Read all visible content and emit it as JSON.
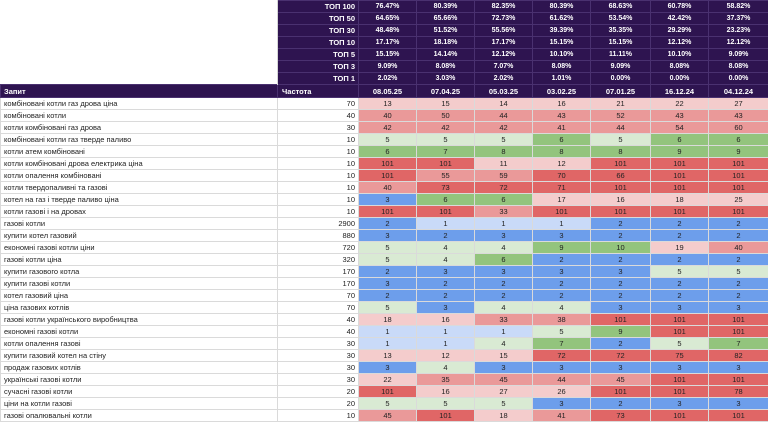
{
  "summary": [
    {
      "label": "ТОП 100",
      "values": [
        "76.47%",
        "80.39%",
        "82.35%",
        "80.39%",
        "68.63%",
        "60.78%",
        "58.82%"
      ]
    },
    {
      "label": "ТОП 50",
      "values": [
        "64.65%",
        "65.66%",
        "72.73%",
        "61.62%",
        "53.54%",
        "42.42%",
        "37.37%"
      ]
    },
    {
      "label": "ТОП 30",
      "values": [
        "48.48%",
        "51.52%",
        "55.56%",
        "39.39%",
        "35.35%",
        "29.29%",
        "23.23%"
      ]
    },
    {
      "label": "ТОП 10",
      "values": [
        "17.17%",
        "18.18%",
        "17.17%",
        "15.15%",
        "15.15%",
        "12.12%",
        "12.12%"
      ]
    },
    {
      "label": "ТОП 5",
      "values": [
        "15.15%",
        "14.14%",
        "12.12%",
        "10.10%",
        "11.11%",
        "10.10%",
        "9.09%"
      ]
    },
    {
      "label": "ТОП 3",
      "values": [
        "9.09%",
        "8.08%",
        "7.07%",
        "8.08%",
        "9.09%",
        "8.08%",
        "8.08%"
      ]
    },
    {
      "label": "ТОП 1",
      "values": [
        "2.02%",
        "3.03%",
        "2.02%",
        "1.01%",
        "0.00%",
        "0.00%",
        "0.00%"
      ]
    }
  ],
  "header": {
    "query": "Запит",
    "freq": "Частота",
    "dates": [
      "08.05.25",
      "07.04.25",
      "05.03.25",
      "03.02.25",
      "07.01.25",
      "16.12.24",
      "04.12.24"
    ]
  },
  "rows": [
    {
      "q": "комбіновані котли газ дрова ціна",
      "f": "70",
      "v": [
        "13",
        "15",
        "14",
        "16",
        "21",
        "22",
        "27"
      ]
    },
    {
      "q": "комбіновані котли",
      "f": "40",
      "v": [
        "40",
        "50",
        "44",
        "43",
        "52",
        "43",
        "43"
      ]
    },
    {
      "q": "котли комбіновані газ дрова",
      "f": "30",
      "v": [
        "42",
        "42",
        "42",
        "41",
        "44",
        "54",
        "60"
      ]
    },
    {
      "q": "комбіновані котли газ тверде паливо",
      "f": "10",
      "v": [
        "5",
        "5",
        "5",
        "6",
        "5",
        "6",
        "6"
      ]
    },
    {
      "q": "котли атем комбіновані",
      "f": "10",
      "v": [
        "6",
        "7",
        "8",
        "8",
        "8",
        "9",
        "9"
      ]
    },
    {
      "q": "котли комбіновані дрова електрика ціна",
      "f": "10",
      "v": [
        "101",
        "101",
        "11",
        "12",
        "101",
        "101",
        "101"
      ]
    },
    {
      "q": "котли опалення комбіновані",
      "f": "10",
      "v": [
        "101",
        "55",
        "59",
        "70",
        "66",
        "101",
        "101"
      ]
    },
    {
      "q": "котли твердопаливні та газові",
      "f": "10",
      "v": [
        "40",
        "73",
        "72",
        "71",
        "101",
        "101",
        "101"
      ]
    },
    {
      "q": "котел на газ і тверде паливо ціна",
      "f": "10",
      "v": [
        "3",
        "6",
        "6",
        "17",
        "16",
        "18",
        "25"
      ]
    },
    {
      "q": "котли газові і на дровах",
      "f": "10",
      "v": [
        "101",
        "101",
        "33",
        "101",
        "101",
        "101",
        "101"
      ]
    },
    {
      "q": "газові котли",
      "f": "2900",
      "v": [
        "2",
        "1",
        "1",
        "1",
        "2",
        "2",
        "2"
      ]
    },
    {
      "q": "купити котел газовий",
      "f": "880",
      "v": [
        "3",
        "2",
        "3",
        "3",
        "2",
        "2",
        "2"
      ]
    },
    {
      "q": "економні газові котли ціни",
      "f": "720",
      "v": [
        "5",
        "4",
        "4",
        "9",
        "10",
        "19",
        "40"
      ]
    },
    {
      "q": "газові котли ціна",
      "f": "320",
      "v": [
        "5",
        "4",
        "6",
        "2",
        "2",
        "2",
        "2"
      ]
    },
    {
      "q": "купити газового котла",
      "f": "170",
      "v": [
        "2",
        "3",
        "3",
        "3",
        "3",
        "5",
        "5"
      ]
    },
    {
      "q": "купити газові котли",
      "f": "170",
      "v": [
        "3",
        "2",
        "2",
        "2",
        "2",
        "2",
        "2"
      ]
    },
    {
      "q": "котел газовий ціна",
      "f": "70",
      "v": [
        "2",
        "2",
        "2",
        "2",
        "2",
        "2",
        "2"
      ]
    },
    {
      "q": "ціна газових котлів",
      "f": "70",
      "v": [
        "5",
        "3",
        "4",
        "4",
        "3",
        "3",
        "3"
      ]
    },
    {
      "q": "газові котли українського виробництва",
      "f": "40",
      "v": [
        "18",
        "16",
        "33",
        "38",
        "101",
        "101",
        "101"
      ]
    },
    {
      "q": "економні газові котли",
      "f": "40",
      "v": [
        "1",
        "1",
        "1",
        "5",
        "9",
        "101",
        "101"
      ]
    },
    {
      "q": "котли опалення газові",
      "f": "30",
      "v": [
        "1",
        "1",
        "4",
        "7",
        "2",
        "5",
        "7"
      ]
    },
    {
      "q": "купити газовий котел на стіну",
      "f": "30",
      "v": [
        "13",
        "12",
        "15",
        "72",
        "72",
        "75",
        "82"
      ]
    },
    {
      "q": "продаж газових котлів",
      "f": "30",
      "v": [
        "3",
        "4",
        "3",
        "3",
        "3",
        "3",
        "3"
      ]
    },
    {
      "q": "українські газові котли",
      "f": "30",
      "v": [
        "22",
        "35",
        "45",
        "44",
        "45",
        "101",
        "101"
      ]
    },
    {
      "q": "сучасні газові котли",
      "f": "20",
      "v": [
        "101",
        "16",
        "27",
        "26",
        "101",
        "101",
        "78"
      ]
    },
    {
      "q": "ціни на котли газові",
      "f": "20",
      "v": [
        "5",
        "5",
        "5",
        "3",
        "2",
        "3",
        "3"
      ]
    },
    {
      "q": "газові опалювальні котли",
      "f": "10",
      "v": [
        "45",
        "101",
        "18",
        "41",
        "73",
        "101",
        "101"
      ]
    }
  ]
}
